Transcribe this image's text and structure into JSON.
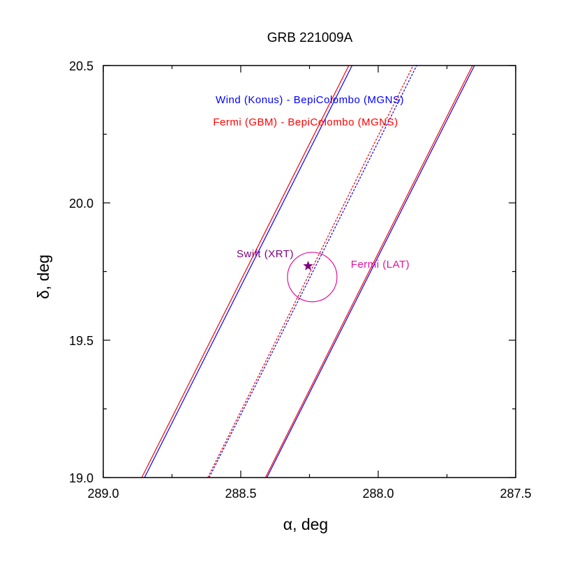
{
  "chart_data": {
    "type": "line",
    "title": "GRB 221009A",
    "xlabel": "α, deg",
    "ylabel": "δ, deg",
    "xlim": [
      289.0,
      287.5
    ],
    "ylim": [
      19.0,
      20.5
    ],
    "x_reversed": true,
    "x_ticks": [
      289.0,
      288.5,
      288.0,
      287.5
    ],
    "x_tick_labels": [
      "289.0",
      "288.5",
      "288.0",
      "287.5"
    ],
    "y_ticks": [
      19.0,
      19.5,
      20.0,
      20.5
    ],
    "y_tick_labels": [
      "19.0",
      "19.5",
      "20.0",
      "20.5"
    ],
    "grid": false,
    "legend": [
      {
        "label": "Wind (Konus) - BepiColombo (MGNS)",
        "color": "#0000ff"
      },
      {
        "label": "Fermi (GBM) - BepiColombo (MGNS)",
        "color": "#ff0000"
      }
    ],
    "series": [
      {
        "name": "Wind (Konus) - BepiColombo (MGNS)",
        "color": "#0000ff",
        "style": "solid",
        "x": [
          288.85,
          288.095
        ],
        "y": [
          19.0,
          20.5
        ]
      },
      {
        "name": "Wind (Konus) - BepiColombo (MGNS)",
        "color": "#0000ff",
        "style": "dotted",
        "x": [
          288.615,
          287.86
        ],
        "y": [
          19.0,
          20.5
        ]
      },
      {
        "name": "Wind (Konus) - BepiColombo (MGNS)",
        "color": "#0000ff",
        "style": "solid",
        "x": [
          288.405,
          287.65
        ],
        "y": [
          19.0,
          20.5
        ]
      },
      {
        "name": "Fermi (GBM) - BepiColombo (MGNS)",
        "color": "#ff0000",
        "style": "solid",
        "x": [
          288.86,
          288.107
        ],
        "y": [
          19.0,
          20.5
        ]
      },
      {
        "name": "Fermi (GBM) - BepiColombo (MGNS)",
        "color": "#ff0000",
        "style": "dotted",
        "x": [
          288.62,
          287.873
        ],
        "y": [
          19.0,
          20.5
        ]
      },
      {
        "name": "Fermi (GBM) - BepiColombo (MGNS)",
        "color": "#ff0000",
        "style": "solid",
        "x": [
          288.41,
          287.657
        ],
        "y": [
          19.0,
          20.5
        ]
      }
    ],
    "annotations": [
      {
        "type": "star",
        "label": "Swift (XRT)",
        "color": "#800080",
        "x": 288.255,
        "y": 19.77
      },
      {
        "type": "circle",
        "label": "Fermi (LAT)",
        "color": "#e0119c",
        "x": 288.24,
        "y": 19.73,
        "radius_deg": 0.09
      }
    ]
  }
}
